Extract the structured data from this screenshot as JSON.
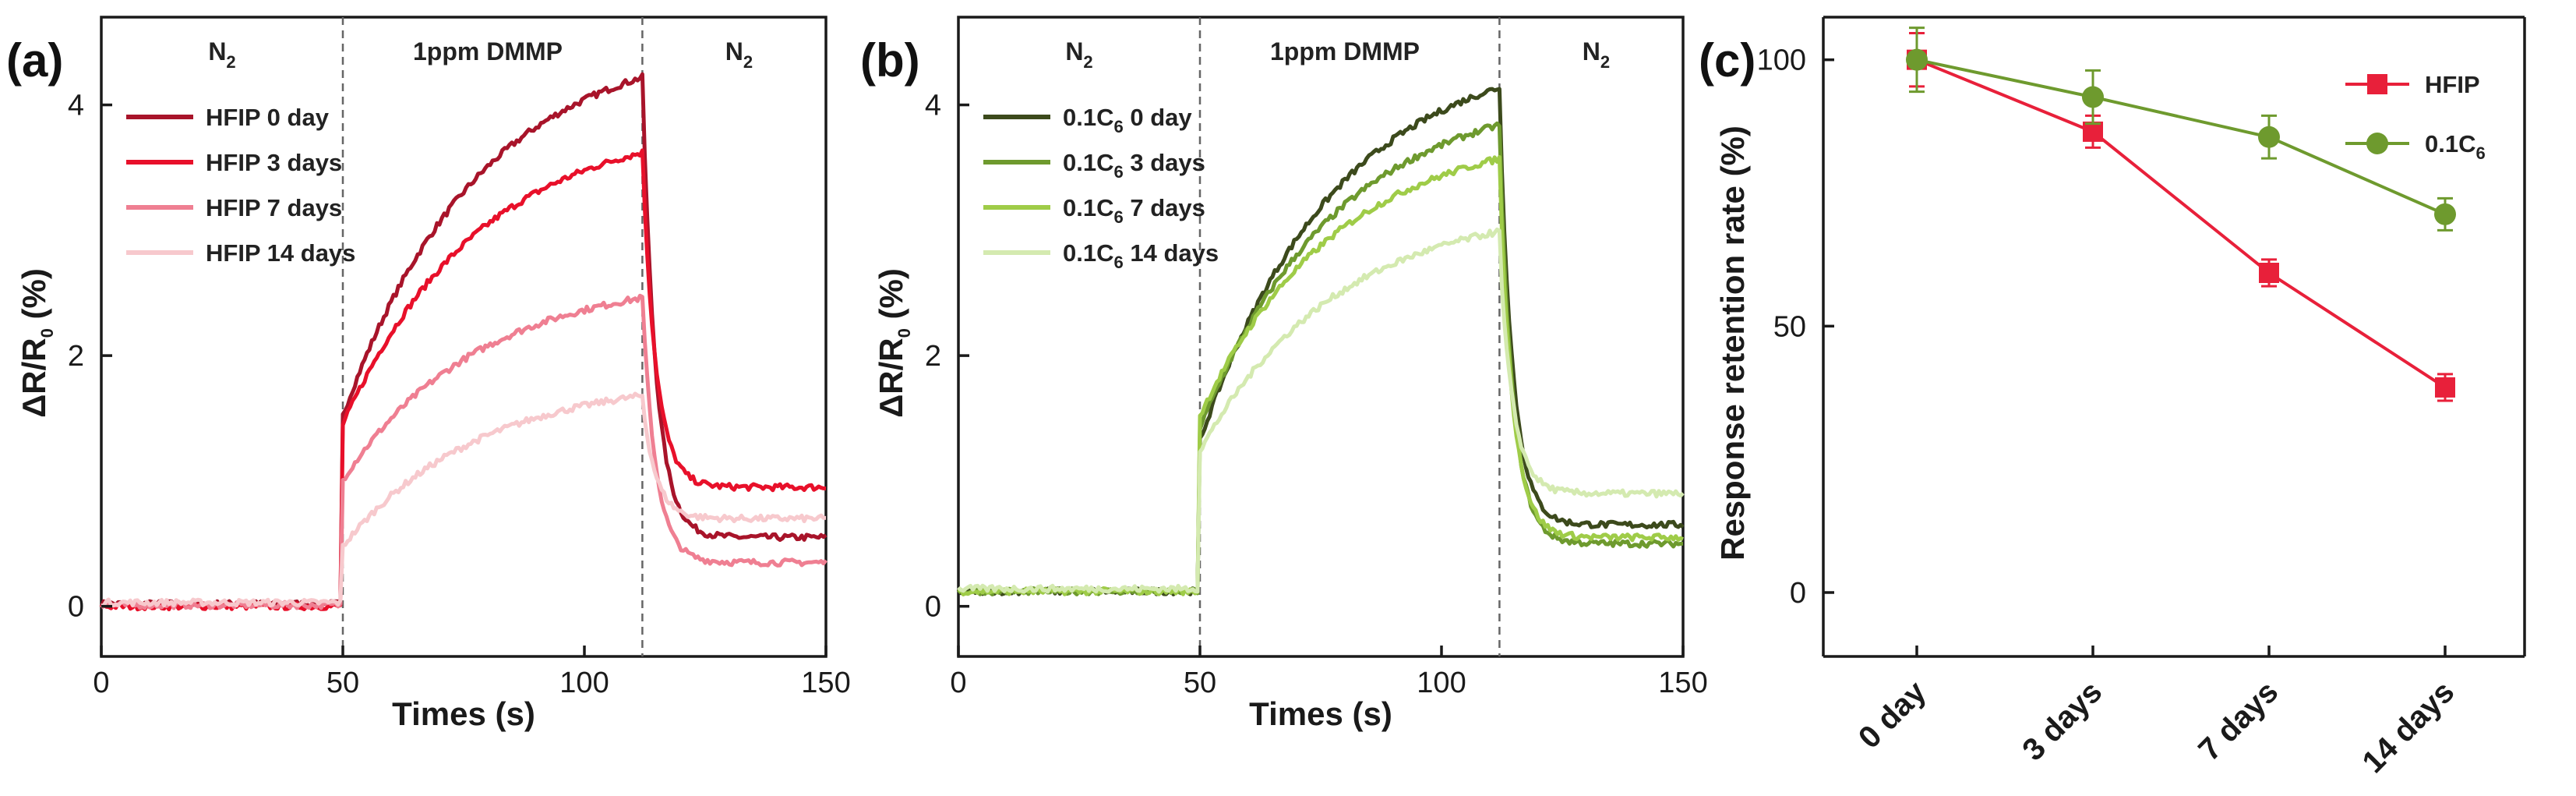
{
  "chart_data": [
    {
      "panel": "(a)",
      "type": "line",
      "xlabel": "Times (s)",
      "ylabel": "ΔR/R",
      "ylabel_sub": "0",
      "ylabel_unit": " (%)",
      "xlim": [
        0,
        150
      ],
      "ylim": [
        -0.4,
        4.7
      ],
      "xticks": [
        0,
        50,
        100,
        150
      ],
      "yticks": [
        0,
        2,
        4
      ],
      "regions": [
        {
          "label": "N",
          "sub": "2",
          "x_center": 25
        },
        {
          "label": "1ppm DMMP",
          "sub": "",
          "x_center": 80
        },
        {
          "label": "N",
          "sub": "2",
          "x_center": 132
        }
      ],
      "dividers": [
        50,
        112
      ],
      "on_time": 50,
      "off_time": 112,
      "series": [
        {
          "name": "HFIP 0 day",
          "color": "#a8142a",
          "base": 0.02,
          "jump": 1.5,
          "peak": 4.2,
          "tail": 0.55
        },
        {
          "name": "HFIP 3 days",
          "color": "#e8102a",
          "base": 0.0,
          "jump": 1.45,
          "peak": 3.62,
          "tail": 0.95
        },
        {
          "name": "HFIP 7 days",
          "color": "#ef7f92",
          "base": 0.01,
          "jump": 1.0,
          "peak": 2.45,
          "tail": 0.35
        },
        {
          "name": "HFIP 14 days",
          "color": "#f7c9cd",
          "base": 0.03,
          "jump": 0.45,
          "peak": 1.65,
          "tail": 0.7
        }
      ]
    },
    {
      "panel": "(b)",
      "type": "line",
      "xlabel": "Times (s)",
      "ylabel": "ΔR/R",
      "ylabel_sub": "0",
      "ylabel_unit": " (%)",
      "xlim": [
        0,
        150
      ],
      "ylim": [
        -0.4,
        4.7
      ],
      "xticks": [
        0,
        50,
        100,
        150
      ],
      "yticks": [
        0,
        2,
        4
      ],
      "regions": [
        {
          "label": "N",
          "sub": "2",
          "x_center": 25
        },
        {
          "label": "1ppm DMMP",
          "sub": "",
          "x_center": 80
        },
        {
          "label": "N",
          "sub": "2",
          "x_center": 132
        }
      ],
      "dividers": [
        50,
        112
      ],
      "on_time": 50,
      "off_time": 112,
      "series": [
        {
          "name": "0.1C",
          "sub": "6",
          "suffix": " 0 day",
          "color": "#3c4a1c",
          "base": 0.12,
          "jump": 1.2,
          "peak": 4.02,
          "tail": 0.65
        },
        {
          "name": "0.1C",
          "sub": "6",
          "suffix": " 3 days",
          "color": "#6e9a2e",
          "base": 0.12,
          "jump": 1.3,
          "peak": 3.72,
          "tail": 0.5
        },
        {
          "name": "0.1C",
          "sub": "6",
          "suffix": " 7 days",
          "color": "#9fcc48",
          "base": 0.12,
          "jump": 1.4,
          "peak": 3.45,
          "tail": 0.55
        },
        {
          "name": "0.1C",
          "sub": "6",
          "suffix": " 14 days",
          "color": "#d4eab0",
          "base": 0.14,
          "jump": 1.1,
          "peak": 2.85,
          "tail": 0.9
        }
      ]
    },
    {
      "panel": "(c)",
      "type": "line",
      "categories": [
        "0 day",
        "3 days",
        "7 days",
        "14 days"
      ],
      "ylabel": "Response retention rate (%)",
      "ylim": [
        -12,
        108
      ],
      "yticks": [
        0,
        50,
        100
      ],
      "series": [
        {
          "name": "HFIP",
          "sub": "",
          "marker": "square",
          "color": "#e8203a",
          "values": [
            100,
            86.5,
            60,
            38.5
          ],
          "errors": [
            5,
            3,
            2.5,
            2.5
          ]
        },
        {
          "name": "0.1C",
          "sub": "6",
          "marker": "circle",
          "color": "#6e9a2e",
          "values": [
            100,
            93,
            85.5,
            71
          ],
          "errors": [
            6,
            5,
            4,
            3
          ]
        }
      ]
    }
  ]
}
